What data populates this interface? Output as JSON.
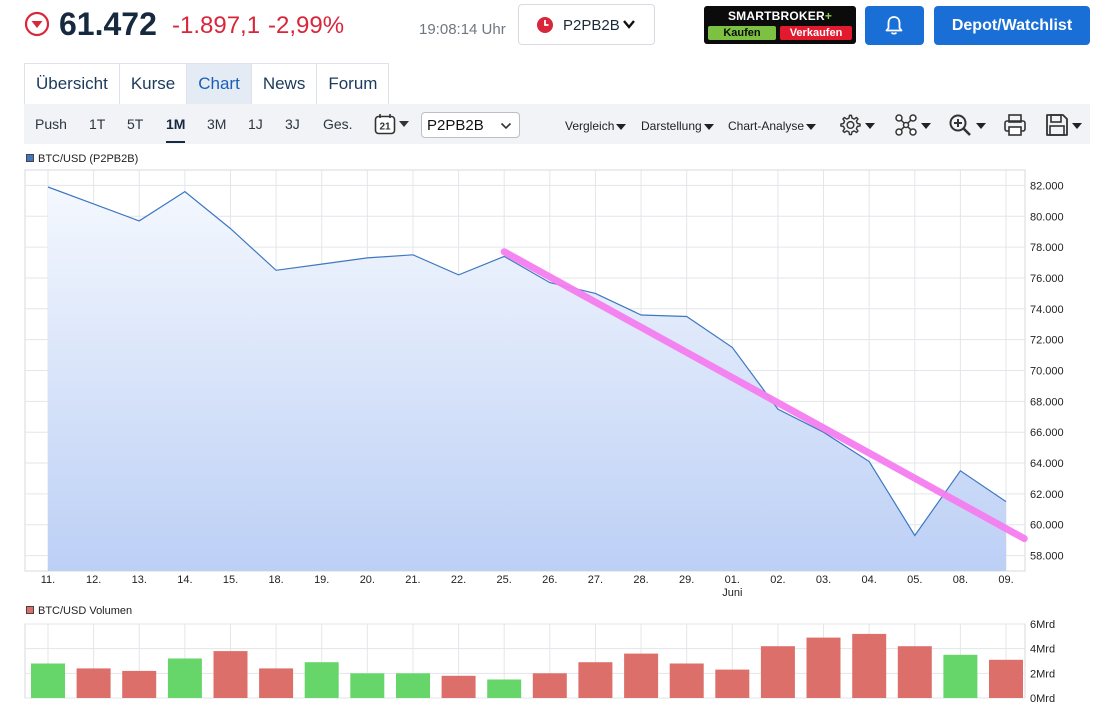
{
  "quote": {
    "price": "61.472",
    "change_abs": "-1.897,1",
    "change_pct": "-2,99%",
    "time": "19:08:14 Uhr",
    "exchange": "P2PB2B",
    "trend_icon": "down-circle-icon",
    "down_color": "#d9263b"
  },
  "broker": {
    "brand": "SMARTBROKER",
    "plus": "+",
    "buy_label": "Kaufen",
    "sell_label": "Verkaufen"
  },
  "header_buttons": {
    "bell_icon": "bell-icon",
    "depot_label": "Depot/Watchlist",
    "accent": "#1a6fd6"
  },
  "nav": {
    "tabs": [
      {
        "label": "Übersicht",
        "active": false
      },
      {
        "label": "Kurse",
        "active": false
      },
      {
        "label": "Chart",
        "active": true
      },
      {
        "label": "News",
        "active": false
      },
      {
        "label": "Forum",
        "active": false
      }
    ]
  },
  "toolbar": {
    "periods": [
      "Push",
      "1T",
      "5T",
      "1M",
      "3M",
      "1J",
      "3J",
      "Ges."
    ],
    "active_period": "1M",
    "calendar_label": "21",
    "exchange_select": "P2PB2B",
    "menus": [
      "Vergleich",
      "Darstellung",
      "Chart-Analyse"
    ],
    "icons": [
      "gear-icon",
      "network-icon",
      "zoom-icon",
      "print-icon",
      "save-icon"
    ]
  },
  "chart_data": [
    {
      "type": "area",
      "legend": "BTC/USD (P2PB2B)",
      "series_color": "#3e78c0",
      "x": [
        "11.",
        "12.",
        "13.",
        "14.",
        "15.",
        "18.",
        "19.",
        "20.",
        "21.",
        "22.",
        "25.",
        "26.",
        "27.",
        "28.",
        "29.",
        "01.",
        "02.",
        "03.",
        "04.",
        "05.",
        "08.",
        "09."
      ],
      "x_sublabel": {
        "index": 15,
        "text": "Juni"
      },
      "y": [
        81900,
        80800,
        79700,
        81600,
        79200,
        76500,
        76900,
        77300,
        77500,
        76200,
        77400,
        75700,
        75000,
        73600,
        73500,
        71500,
        67500,
        66000,
        64100,
        59300,
        63500,
        61500
      ],
      "ylim": [
        57000,
        83000
      ],
      "yticks": [
        "58.000",
        "60.000",
        "62.000",
        "64.000",
        "66.000",
        "68.000",
        "70.000",
        "72.000",
        "74.000",
        "76.000",
        "78.000",
        "80.000",
        "82.000"
      ],
      "ytick_values": [
        58000,
        60000,
        62000,
        64000,
        66000,
        68000,
        70000,
        72000,
        74000,
        76000,
        78000,
        80000,
        82000
      ],
      "grid": true,
      "trendline": {
        "color": "#f57ef0",
        "from": {
          "x_index": 10,
          "y": 77700
        },
        "to": {
          "x_index": 21.4,
          "y": 59100
        }
      }
    },
    {
      "type": "bar",
      "legend": "BTC/USD Volumen",
      "categories": [
        "11.",
        "12.",
        "13.",
        "14.",
        "15.",
        "18.",
        "19.",
        "20.",
        "21.",
        "22.",
        "25.",
        "26.",
        "27.",
        "28.",
        "29.",
        "01.",
        "02.",
        "03.",
        "04.",
        "05.",
        "08.",
        "09."
      ],
      "values": [
        2.8,
        2.4,
        2.2,
        3.2,
        3.8,
        2.4,
        2.9,
        2.0,
        2.0,
        1.8,
        1.5,
        2.0,
        2.9,
        3.6,
        2.8,
        2.3,
        4.2,
        4.9,
        5.2,
        4.2,
        3.5,
        3.1
      ],
      "up": [
        true,
        false,
        false,
        true,
        false,
        false,
        true,
        true,
        true,
        false,
        true,
        false,
        false,
        false,
        false,
        false,
        false,
        false,
        false,
        false,
        true,
        false
      ],
      "unit": "Mrd",
      "ylim": [
        0,
        6
      ],
      "yticks": [
        "0Mrd",
        "2Mrd",
        "4Mrd",
        "6Mrd"
      ],
      "ytick_values": [
        0,
        2,
        4,
        6
      ],
      "up_color": "#66d66a",
      "down_color": "#dc6f6a"
    }
  ]
}
